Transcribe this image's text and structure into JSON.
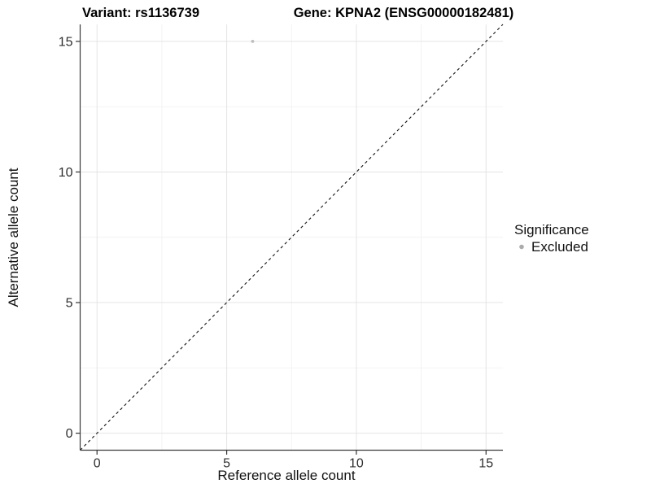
{
  "chart_data": {
    "type": "scatter",
    "titles": [
      "Variant: rs1136739",
      "Gene: KPNA2 (ENSG00000182481)"
    ],
    "xlabel": "Reference allele count",
    "ylabel": "Alternative allele count",
    "xlim": [
      -0.65,
      15.65
    ],
    "ylim": [
      -0.65,
      15.65
    ],
    "x_ticks": [
      0,
      5,
      10,
      15
    ],
    "y_ticks": [
      0,
      5,
      10,
      15
    ],
    "x_minor_ticks": [
      2.5,
      7.5,
      12.5
    ],
    "y_minor_ticks": [
      2.5,
      7.5,
      12.5
    ],
    "grid": true,
    "series": [
      {
        "name": "Excluded",
        "color": "#bdbdbd",
        "point_radius": 1.9,
        "points": [
          {
            "x": 6,
            "y": 15
          }
        ]
      }
    ],
    "reference_line": {
      "type": "identity",
      "style": "dashed",
      "color": "#111111"
    },
    "legend": {
      "title": "Significance",
      "position": "right",
      "items": [
        {
          "label": "Excluded",
          "color": "#ababab"
        }
      ]
    },
    "colors": {
      "background": "#ffffff",
      "grid_major": "#e4e4e4",
      "grid_minor": "#f2f2f2",
      "axis_line": "#3a3a3a",
      "tick": "#333333"
    }
  }
}
